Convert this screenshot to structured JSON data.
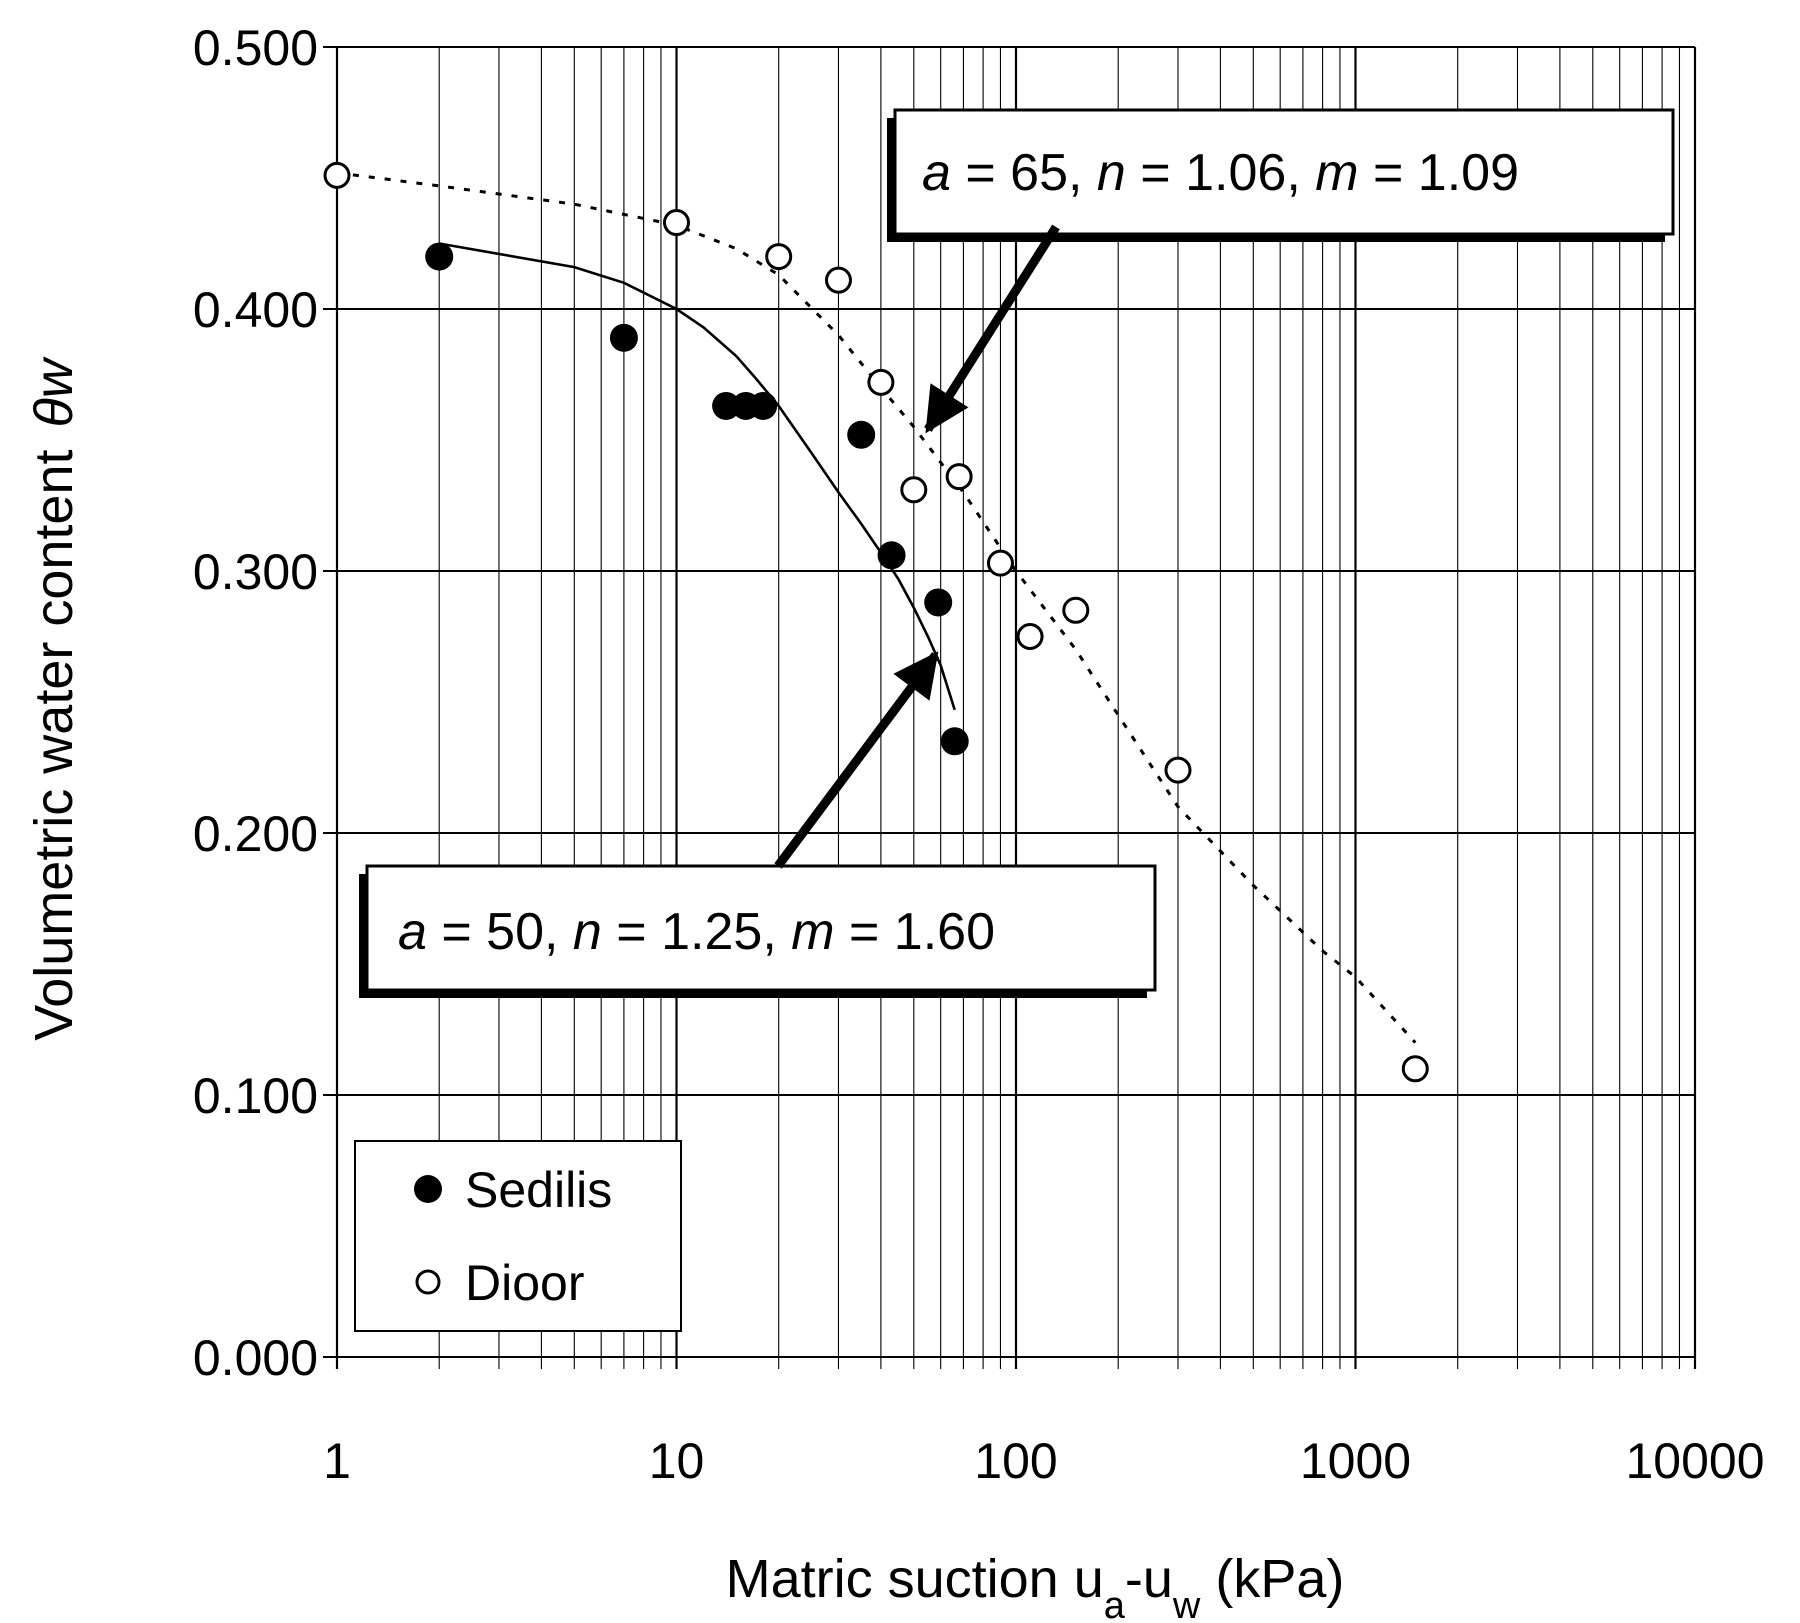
{
  "chart_data": {
    "type": "scatter",
    "xlabel_main": "Matric suction u",
    "xlabel_sub_a": "a",
    "xlabel_dash": "-u",
    "xlabel_sub_w": "w",
    "xlabel_unit": " (kPa)",
    "ylabel_text": "Volumetric water content",
    "ylabel_symbol": "θw",
    "x_scale": "log",
    "xlim": [
      1,
      10000
    ],
    "ylim": [
      0,
      0.5
    ],
    "grid": true,
    "x_tick_labels": [
      "1",
      "10",
      "100",
      "1000",
      "10000"
    ],
    "x_tick_values": [
      1,
      10,
      100,
      1000,
      10000
    ],
    "y_tick_labels": [
      "0.000",
      "0.100",
      "0.200",
      "0.300",
      "0.400",
      "0.500"
    ],
    "y_tick_values": [
      0,
      0.1,
      0.2,
      0.3,
      0.4,
      0.5
    ],
    "legend_position": "bottom-left",
    "series": [
      {
        "name": "Sedilis",
        "marker": "filled-circle",
        "points": [
          {
            "x": 2,
            "y": 0.42
          },
          {
            "x": 7,
            "y": 0.389
          },
          {
            "x": 14,
            "y": 0.363
          },
          {
            "x": 16,
            "y": 0.363
          },
          {
            "x": 18,
            "y": 0.363
          },
          {
            "x": 35,
            "y": 0.352
          },
          {
            "x": 43,
            "y": 0.306
          },
          {
            "x": 59,
            "y": 0.288
          },
          {
            "x": 66,
            "y": 0.235
          }
        ],
        "fit_line_style": "solid",
        "fit": [
          {
            "x": 2,
            "y": 0.425
          },
          {
            "x": 5,
            "y": 0.416
          },
          {
            "x": 7,
            "y": 0.41
          },
          {
            "x": 10,
            "y": 0.4
          },
          {
            "x": 12,
            "y": 0.393
          },
          {
            "x": 15,
            "y": 0.382
          },
          {
            "x": 17,
            "y": 0.374
          },
          {
            "x": 20,
            "y": 0.363
          },
          {
            "x": 25,
            "y": 0.345
          },
          {
            "x": 30,
            "y": 0.33
          },
          {
            "x": 35,
            "y": 0.318
          },
          {
            "x": 40,
            "y": 0.307
          },
          {
            "x": 45,
            "y": 0.297
          },
          {
            "x": 50,
            "y": 0.286
          },
          {
            "x": 55,
            "y": 0.275
          },
          {
            "x": 60,
            "y": 0.264
          },
          {
            "x": 66,
            "y": 0.247
          }
        ]
      },
      {
        "name": "Dioor",
        "marker": "open-circle",
        "points": [
          {
            "x": 1,
            "y": 0.451
          },
          {
            "x": 10,
            "y": 0.433
          },
          {
            "x": 20,
            "y": 0.42
          },
          {
            "x": 30,
            "y": 0.411
          },
          {
            "x": 40,
            "y": 0.372
          },
          {
            "x": 50,
            "y": 0.331
          },
          {
            "x": 68,
            "y": 0.336
          },
          {
            "x": 90,
            "y": 0.303
          },
          {
            "x": 110,
            "y": 0.275
          },
          {
            "x": 150,
            "y": 0.285
          },
          {
            "x": 300,
            "y": 0.224
          },
          {
            "x": 1500,
            "y": 0.11
          }
        ],
        "fit_line_style": "dotted",
        "fit": [
          {
            "x": 1,
            "y": 0.452
          },
          {
            "x": 2,
            "y": 0.447
          },
          {
            "x": 5,
            "y": 0.44
          },
          {
            "x": 10,
            "y": 0.432
          },
          {
            "x": 15,
            "y": 0.423
          },
          {
            "x": 20,
            "y": 0.413
          },
          {
            "x": 30,
            "y": 0.39
          },
          {
            "x": 40,
            "y": 0.37
          },
          {
            "x": 50,
            "y": 0.355
          },
          {
            "x": 70,
            "y": 0.33
          },
          {
            "x": 100,
            "y": 0.3
          },
          {
            "x": 150,
            "y": 0.27
          },
          {
            "x": 200,
            "y": 0.245
          },
          {
            "x": 300,
            "y": 0.21
          },
          {
            "x": 500,
            "y": 0.18
          },
          {
            "x": 800,
            "y": 0.155
          },
          {
            "x": 1000,
            "y": 0.145
          },
          {
            "x": 1500,
            "y": 0.12
          }
        ]
      }
    ],
    "annotations": [
      {
        "parts": [
          [
            "a",
            true
          ],
          [
            " = 65, ",
            false
          ],
          [
            "n",
            true
          ],
          [
            " = 1.06, ",
            false
          ],
          [
            "m",
            true
          ],
          [
            " = 1.09",
            false
          ]
        ],
        "arrow_to": {
          "x": 55,
          "y": 0.354
        }
      },
      {
        "parts": [
          [
            "a",
            true
          ],
          [
            " = 50, ",
            false
          ],
          [
            "n",
            true
          ],
          [
            " = 1.25, ",
            false
          ],
          [
            "m",
            true
          ],
          [
            " = 1.60",
            false
          ]
        ],
        "arrow_to": {
          "x": 58,
          "y": 0.268
        }
      }
    ]
  }
}
